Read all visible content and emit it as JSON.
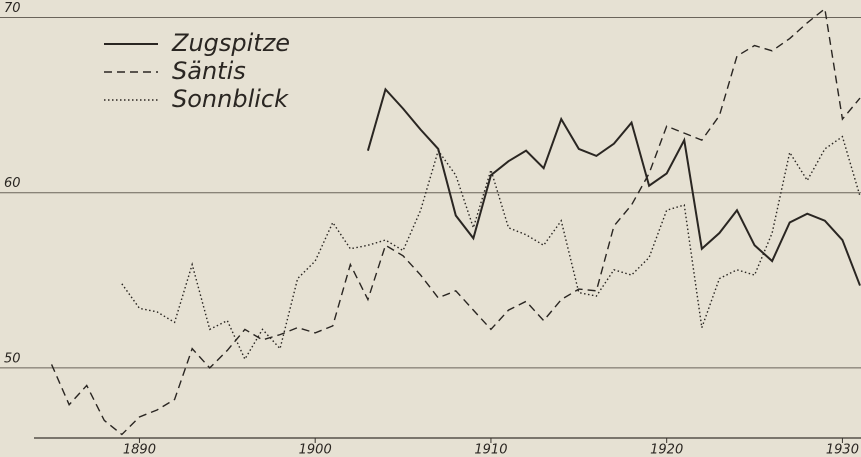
{
  "chart_data": {
    "type": "line",
    "x": [
      1885,
      1886,
      1887,
      1888,
      1889,
      1890,
      1891,
      1892,
      1893,
      1894,
      1895,
      1896,
      1897,
      1898,
      1899,
      1900,
      1901,
      1902,
      1903,
      1904,
      1905,
      1906,
      1907,
      1908,
      1909,
      1910,
      1911,
      1912,
      1913,
      1914,
      1915,
      1916,
      1917,
      1918,
      1919,
      1920,
      1921,
      1922,
      1923,
      1924,
      1925,
      1926,
      1927,
      1928,
      1929,
      1930,
      1931
    ],
    "series": [
      {
        "name": "Zugspitze",
        "color": "#2a2622",
        "style": "solid",
        "values": [
          null,
          null,
          null,
          null,
          null,
          null,
          null,
          null,
          null,
          null,
          null,
          null,
          null,
          null,
          null,
          null,
          null,
          null,
          62.4,
          65.9,
          64.8,
          63.6,
          62.5,
          58.7,
          57.4,
          61.0,
          61.8,
          62.4,
          61.4,
          64.2,
          62.5,
          62.1,
          62.8,
          64.0,
          60.4,
          61.1,
          63.0,
          56.8,
          57.7,
          59.0,
          57.0,
          56.1,
          58.3,
          58.8,
          58.4,
          57.3,
          54.7
        ]
      },
      {
        "name": "Säntis",
        "color": "#2a2622",
        "style": "dashed",
        "values": [
          50.2,
          47.9,
          49.0,
          47.0,
          46.2,
          47.2,
          47.6,
          48.2,
          51.1,
          50.0,
          51.0,
          52.2,
          51.6,
          51.9,
          52.3,
          52.0,
          52.4,
          55.9,
          53.9,
          57.0,
          56.4,
          55.3,
          54.0,
          54.4,
          53.3,
          52.2,
          53.3,
          53.8,
          52.7,
          53.9,
          54.5,
          54.4,
          58.1,
          59.3,
          61.1,
          63.8,
          63.4,
          63.0,
          64.4,
          67.8,
          68.4,
          68.1,
          68.8,
          69.7,
          70.5,
          64.2,
          65.4
        ]
      },
      {
        "name": "Sonnblick",
        "color": "#2a2622",
        "style": "dotted",
        "values": [
          null,
          null,
          null,
          null,
          54.8,
          53.4,
          53.2,
          52.6,
          55.9,
          52.2,
          52.7,
          50.5,
          52.2,
          51.1,
          55.1,
          56.1,
          58.3,
          56.8,
          57.0,
          57.3,
          56.7,
          59.0,
          62.4,
          61.0,
          58.0,
          61.3,
          58.0,
          57.6,
          57.0,
          58.4,
          54.3,
          54.1,
          55.6,
          55.3,
          56.3,
          59.0,
          59.3,
          52.3,
          55.1,
          55.6,
          55.3,
          57.7,
          62.3,
          60.7,
          62.5,
          63.2,
          59.8
        ]
      }
    ],
    "xlim": [
      1884,
      1931
    ],
    "xticks": [
      1890,
      1900,
      1910,
      1920,
      1930
    ],
    "ylim": [
      46,
      71
    ],
    "yticks": [
      50,
      60,
      70
    ],
    "grid": true
  }
}
